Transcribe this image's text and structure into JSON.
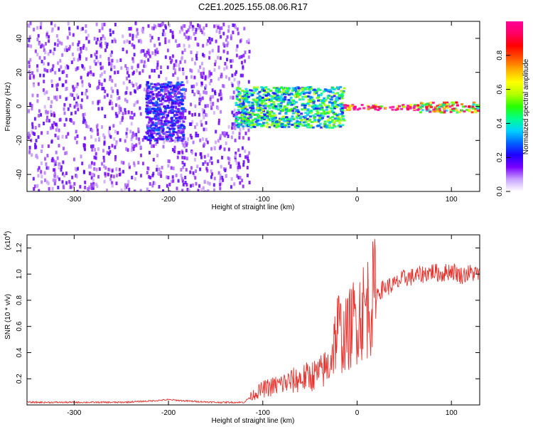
{
  "title": "C2E1.2025.155.08.06.R17",
  "chart_data": [
    {
      "type": "heatmap",
      "xlabel": "Height of straight line (km)",
      "ylabel": "Frequency (Hz)",
      "xlim": [
        -350,
        130
      ],
      "ylim": [
        -50,
        50
      ],
      "x_ticks": [
        -300,
        -200,
        -100,
        0,
        100
      ],
      "y_ticks": [
        -40,
        -20,
        0,
        20,
        40
      ],
      "colorbar": {
        "label": "Normalized spectral amplitude",
        "range": [
          0,
          1
        ],
        "ticks": [
          "0.0",
          "0.2",
          "0.4",
          "0.6",
          "0.8"
        ],
        "colors": [
          "#ffffff",
          "#c9a2ff",
          "#7a00ff",
          "#1f00ff",
          "#0064ff",
          "#00d2ff",
          "#00ff8c",
          "#28ff00",
          "#b4ff00",
          "#ffff00",
          "#ffb000",
          "#ff5000",
          "#ff0000",
          "#ff0064",
          "#ff0096"
        ]
      },
      "regions": [
        {
          "x_range": [
            -350,
            -115
          ],
          "freq_range": [
            -50,
            50
          ],
          "amplitude": 0.12,
          "pattern": "broadband noise"
        },
        {
          "x_range": [
            -225,
            -185
          ],
          "freq_range": [
            -20,
            15
          ],
          "amplitude": 0.2
        },
        {
          "x_range": [
            -130,
            -15
          ],
          "freq_range": [
            -12,
            12
          ],
          "amplitude": 0.4
        },
        {
          "x_range": [
            -15,
            65
          ],
          "freq_range": [
            -1.5,
            1.5
          ],
          "amplitude": 0.95
        },
        {
          "x_range": [
            65,
            130
          ],
          "freq_range": [
            -3,
            3
          ],
          "amplitude": 0.7
        }
      ]
    },
    {
      "type": "line",
      "xlabel": "Height of straight line (km)",
      "ylabel": "SNR (10 * v/v)",
      "y_scale_note": "(x10^4)",
      "xlim": [
        -350,
        130
      ],
      "ylim": [
        0,
        1.3
      ],
      "x_ticks": [
        -300,
        -200,
        -100,
        0,
        100
      ],
      "y_ticks": [
        "0.2",
        "0.4",
        "0.6",
        "0.8",
        "1.0",
        "1.2"
      ],
      "series": [
        {
          "color": "#e8322d",
          "x": [
            -350,
            -300,
            -250,
            -220,
            -200,
            -180,
            -150,
            -120,
            -110,
            -100,
            -80,
            -60,
            -50,
            -40,
            -30,
            -25,
            -20,
            -15,
            -10,
            -5,
            0,
            10,
            20,
            30,
            40,
            50,
            60,
            70,
            80,
            90,
            100,
            110,
            120,
            130
          ],
          "y": [
            0.02,
            0.02,
            0.02,
            0.03,
            0.04,
            0.03,
            0.02,
            0.02,
            0.08,
            0.12,
            0.16,
            0.2,
            0.22,
            0.24,
            0.3,
            0.45,
            0.6,
            0.5,
            0.55,
            0.62,
            0.68,
            0.75,
            0.85,
            0.9,
            0.92,
            0.97,
            0.98,
            1.0,
            1.02,
            1.0,
            1.03,
            0.99,
            1.01,
            1.0
          ]
        }
      ]
    }
  ]
}
